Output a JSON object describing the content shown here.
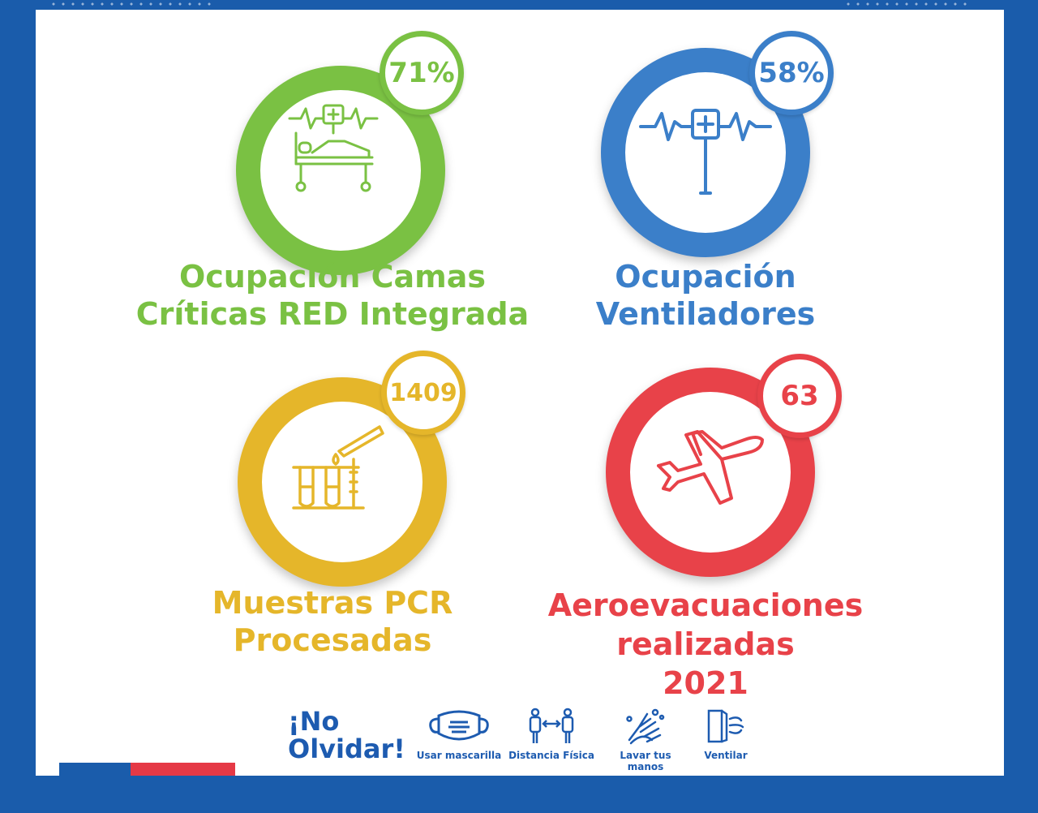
{
  "colors": {
    "green": "#7ac143",
    "blue": "#3b7fc9",
    "yellow": "#e5b62a",
    "red": "#e84249",
    "navy": "#1d5bb0"
  },
  "stats": [
    {
      "id": "camas",
      "value": "71%",
      "label_lines": [
        "Ocupación Camas",
        "Críticas RED Integrada"
      ],
      "icon": "hospital-bed-icon"
    },
    {
      "id": "ventiladores",
      "value": "58%",
      "label_lines": [
        "Ocupación",
        "Ventiladores"
      ],
      "icon": "iv-heartbeat-icon"
    },
    {
      "id": "pcr",
      "value": "1409",
      "label_lines": [
        "Muestras PCR",
        "Procesadas"
      ],
      "icon": "test-tubes-icon"
    },
    {
      "id": "aero",
      "value": "63",
      "label_lines": [
        "Aeroevacuaciones",
        "realizadas",
        "2021"
      ],
      "icon": "airplane-icon"
    }
  ],
  "reminder": {
    "title_lines": [
      "¡No",
      "Olvidar!"
    ],
    "items": [
      {
        "label": "Usar mascarilla",
        "icon": "face-mask-icon"
      },
      {
        "label": "Distancia Física",
        "icon": "distance-icon"
      },
      {
        "label": "Lavar tus manos",
        "icon": "hand-wash-icon"
      },
      {
        "label": "Ventilar",
        "icon": "ventilate-icon"
      }
    ]
  }
}
